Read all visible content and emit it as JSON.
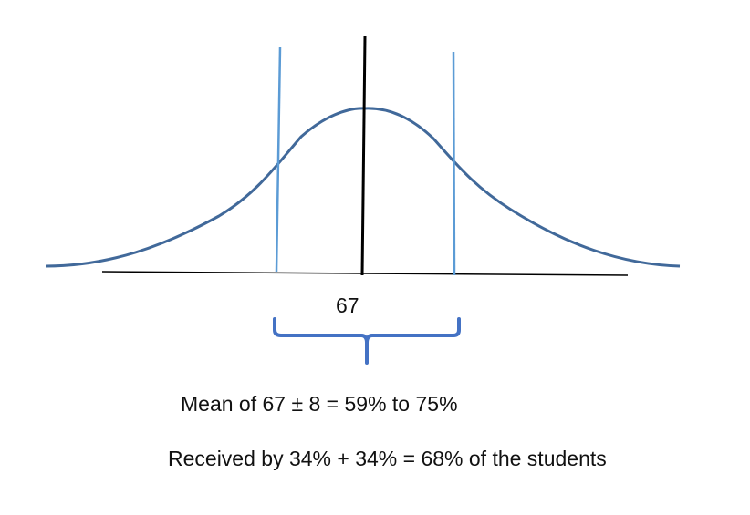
{
  "diagram": {
    "mean_value": "67",
    "caption_line_1": "Mean of 67 ± 8 = 59% to 75%",
    "caption_line_2": "Received by 34% + 34% = 68% of the students",
    "colors": {
      "curve": "#41699a",
      "sd_lines": "#5b9bd5",
      "mean_line": "#000000",
      "baseline": "#000000",
      "bracket": "#4472c4"
    }
  }
}
